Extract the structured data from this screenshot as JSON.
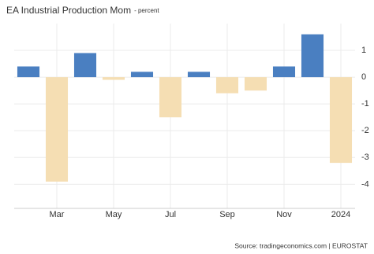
{
  "chart_data": {
    "type": "bar",
    "title": "EA Industrial Production Mom",
    "subtitle": "- percent",
    "source": "Source: tradingeconomics.com | EUROSTAT",
    "categories": [
      null,
      "Mar",
      null,
      "May",
      null,
      "Jul",
      null,
      "Sep",
      null,
      "Nov",
      null,
      "2024"
    ],
    "values": [
      0.4,
      -3.9,
      0.9,
      -0.1,
      0.2,
      -1.5,
      0.2,
      -0.6,
      -0.5,
      0.4,
      1.6,
      -3.2
    ],
    "color_positive": "#4a7fc1",
    "color_negative": "#f5deb3",
    "ylim": [
      -4.9,
      2
    ],
    "yticks": [
      1,
      0,
      -1,
      -2,
      -3,
      -4
    ],
    "grid": true
  }
}
